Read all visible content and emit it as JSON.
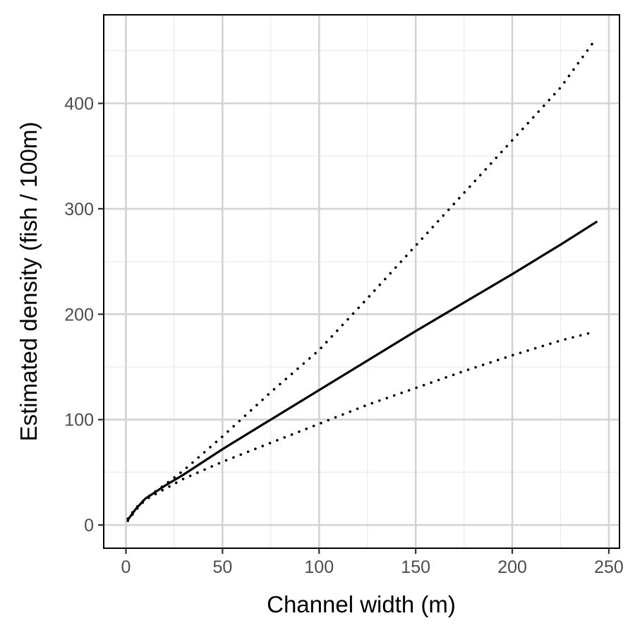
{
  "chart_data": {
    "type": "line",
    "title": "",
    "xlabel": "Channel width (m)",
    "ylabel": "Estimated density (fish / 100m)",
    "xlim": [
      -11.5,
      255.5
    ],
    "ylim": [
      -22,
      484
    ],
    "x_ticks": [
      0,
      50,
      100,
      150,
      200,
      250
    ],
    "y_ticks": [
      0,
      100,
      200,
      300,
      400
    ],
    "grid": true,
    "legend": "none",
    "background": "#ffffff",
    "series": [
      {
        "line_style": "solid",
        "color": "#000000",
        "x": [
          1,
          5,
          10,
          20,
          30,
          50,
          75,
          100,
          125,
          150,
          175,
          200,
          225,
          244
        ],
        "y": [
          5,
          15,
          25,
          37,
          48,
          72,
          100,
          128,
          156,
          184,
          211,
          238,
          266,
          288
        ]
      },
      {
        "line_style": "dotted",
        "color": "#000000",
        "x": [
          1,
          5,
          10,
          20,
          30,
          50,
          75,
          100,
          125,
          150,
          175,
          200,
          225,
          242
        ],
        "y": [
          6,
          16,
          25,
          38,
          52,
          84,
          126,
          166,
          215,
          265,
          315,
          365,
          415,
          458
        ]
      },
      {
        "line_style": "dotted",
        "color": "#000000",
        "x": [
          1,
          5,
          10,
          20,
          30,
          50,
          75,
          100,
          125,
          150,
          175,
          200,
          225,
          242
        ],
        "y": [
          4,
          14,
          24,
          34,
          44,
          60,
          78,
          96,
          114,
          130,
          146,
          161,
          175,
          183
        ]
      }
    ]
  }
}
